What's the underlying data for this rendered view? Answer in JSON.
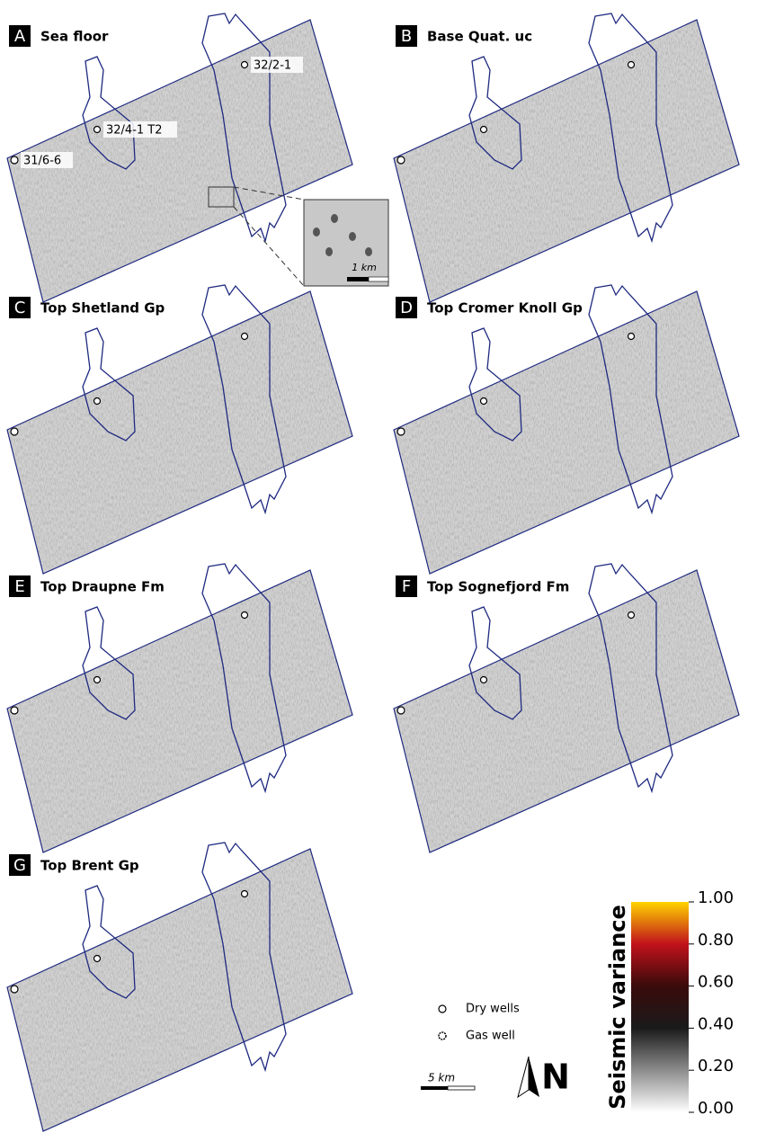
{
  "panels": [
    {
      "letter": "A",
      "title": "Sea floor",
      "wells": [
        "32/2-1",
        "32/4-1 T2",
        "31/6-6"
      ],
      "inset_scale": "1 km"
    },
    {
      "letter": "B",
      "title": "Base Quat. uc"
    },
    {
      "letter": "C",
      "title": "Top Shetland Gp"
    },
    {
      "letter": "D",
      "title": "Top Cromer Knoll Gp"
    },
    {
      "letter": "E",
      "title": "Top Draupne Fm"
    },
    {
      "letter": "F",
      "title": "Top Sognefjord Fm"
    },
    {
      "letter": "G",
      "title": "Top Brent Gp"
    }
  ],
  "legend": {
    "dry": "Dry wells",
    "gas": "Gas well"
  },
  "scale_bar": "5 km",
  "north": "N",
  "colorbar": {
    "title": "Seismic variance",
    "lim": [
      0,
      1
    ],
    "ticks": [
      {
        "value": 0,
        "label": "0.00"
      },
      {
        "value": 0.2,
        "label": "0.20"
      },
      {
        "value": 0.4,
        "label": "0.40"
      },
      {
        "value": 0.6,
        "label": "0.60"
      },
      {
        "value": 0.8,
        "label": "0.80"
      },
      {
        "value": 1,
        "label": "1.00"
      }
    ]
  }
}
